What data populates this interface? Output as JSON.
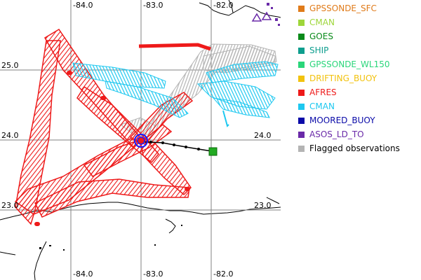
{
  "map": {
    "top_labels": [
      "-84.0",
      "-83.0",
      "-82.0"
    ],
    "bottom_labels": [
      "-84.0",
      "-83.0",
      "-82.0"
    ],
    "left_labels": [
      "25.0",
      "24.0",
      "23.0"
    ],
    "right_labels": [
      "24.0",
      "23.0"
    ],
    "grid_color": "#808080",
    "coast_color": "#000000",
    "track_color": "#000000",
    "storm_center_color": "#1a1aff",
    "forecast_end_color": "#22aa22",
    "storm_center_position": {
      "lon": -83.0,
      "lat": 23.97
    },
    "forecast_end_position": {
      "lon": -82.03,
      "lat": 23.83
    }
  },
  "legend": {
    "items": [
      {
        "label": "GPSSONDE_SFC",
        "color": "#e07b1a"
      },
      {
        "label": "CMAN",
        "color": "#9ed63a"
      },
      {
        "label": "GOES",
        "color": "#0a8a1a"
      },
      {
        "label": "SHIP",
        "color": "#0e9e8e"
      },
      {
        "label": "GPSSONDE_WL150",
        "color": "#2ad67a"
      },
      {
        "label": "DRIFTING_BUOY",
        "color": "#f2c20e"
      },
      {
        "label": "AFRES",
        "color": "#ee1a1a"
      },
      {
        "label": "CMAN",
        "color": "#1ec8f0"
      },
      {
        "label": "MOORED_BUOY",
        "color": "#0a0aa8"
      },
      {
        "label": "ASOS_LD_TO",
        "color": "#6a2aa8"
      },
      {
        "label": "Flagged observations",
        "color": "#b4b4b4"
      }
    ]
  },
  "colors": {
    "afres": "#ee1a1a",
    "cman": "#1ec8f0",
    "flagged": "#b4b4b4",
    "asos": "#6a2aa8"
  }
}
